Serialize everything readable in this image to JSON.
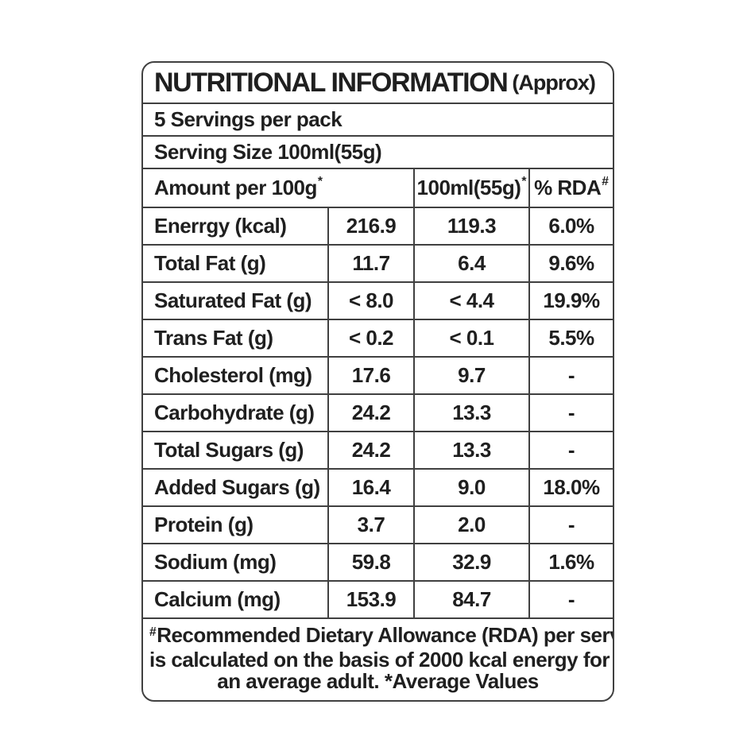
{
  "label": {
    "title": "NUTRITIONAL INFORMATION",
    "title_suffix": "(Approx)",
    "servings_line": "5 Servings per pack",
    "serving_size_line": "Serving Size 100ml(55g)",
    "header": {
      "amount": "Amount per 100g",
      "amount_sup": "*",
      "serving": "100ml(55g)",
      "serving_sup": "*",
      "rda": "% RDA",
      "rda_sup": "#"
    },
    "rows": [
      {
        "nutrient": "Enerrgy (kcal)",
        "per100g": "216.9",
        "per100ml": "119.3",
        "rda": "6.0%"
      },
      {
        "nutrient": "Total Fat (g)",
        "per100g": "11.7",
        "per100ml": "6.4",
        "rda": "9.6%"
      },
      {
        "nutrient": "Saturated Fat (g)",
        "per100g": "< 8.0",
        "per100ml": "< 4.4",
        "rda": "19.9%"
      },
      {
        "nutrient": "Trans Fat (g)",
        "per100g": "< 0.2",
        "per100ml": "< 0.1",
        "rda": "5.5%"
      },
      {
        "nutrient": "Cholesterol (mg)",
        "per100g": "17.6",
        "per100ml": "9.7",
        "rda": "-"
      },
      {
        "nutrient": "Carbohydrate (g)",
        "per100g": "24.2",
        "per100ml": "13.3",
        "rda": "-"
      },
      {
        "nutrient": "Total Sugars (g)",
        "per100g": "24.2",
        "per100ml": "13.3",
        "rda": "-"
      },
      {
        "nutrient": "Added Sugars (g)",
        "per100g": "16.4",
        "per100ml": "9.0",
        "rda": "18.0%"
      },
      {
        "nutrient": "Protein (g)",
        "per100g": "3.7",
        "per100ml": "2.0",
        "rda": "-"
      },
      {
        "nutrient": "Sodium (mg)",
        "per100g": "59.8",
        "per100ml": "32.9",
        "rda": "1.6%"
      },
      {
        "nutrient": "Calcium (mg)",
        "per100g": "153.9",
        "per100ml": "84.7",
        "rda": "-"
      }
    ],
    "footnote": {
      "marker": "#",
      "line1": "Recommended Dietary Allowance (RDA) per serve",
      "line2": "is calculated on the basis of 2000 kcal energy for",
      "line3": "an average adult. *Average Values"
    },
    "colors": {
      "text": "#1f1f1f",
      "border": "#404040",
      "background": "#ffffff"
    }
  }
}
